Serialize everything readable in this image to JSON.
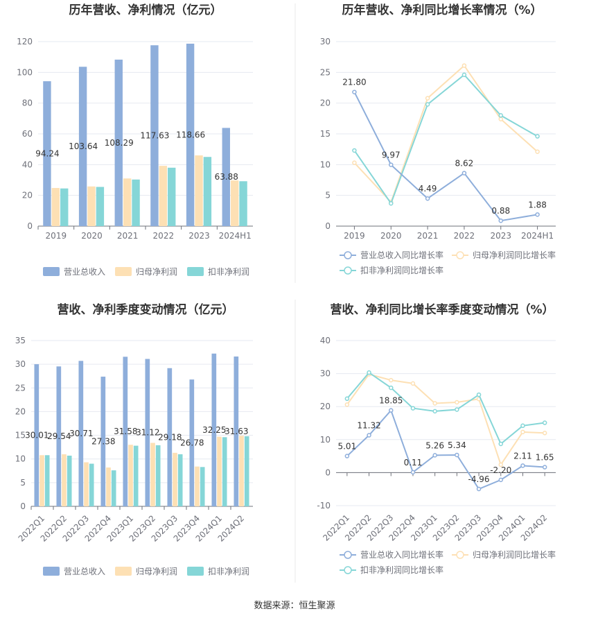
{
  "source_text": "数据来源：恒生聚源",
  "colors": {
    "revenue": "#8EAEDB",
    "parent_profit": "#FDE0B4",
    "deducted_profit": "#85D6D7",
    "grid": "#E6E9F0",
    "axis": "#6E7079",
    "title": "#333333",
    "divider": "#E8E8E8"
  },
  "chart_data": [
    {
      "type": "bar",
      "title": "历年营收、净利情况（亿元）",
      "categories": [
        "2019",
        "2020",
        "2021",
        "2022",
        "2023",
        "2024H1"
      ],
      "ylim": [
        0,
        120
      ],
      "yticks": [
        0,
        20,
        40,
        60,
        80,
        100,
        120
      ],
      "series": [
        {
          "name": "营业总收入",
          "values": [
            94.24,
            103.64,
            108.29,
            117.63,
            118.66,
            63.88
          ],
          "labels": [
            "94.24",
            "103.64",
            "108.29",
            "117.63",
            "118.66",
            "63.88"
          ]
        },
        {
          "name": "归母净利润",
          "values": [
            24.8,
            25.8,
            31.0,
            39.2,
            46.0,
            29.7
          ]
        },
        {
          "name": "扣非净利润",
          "values": [
            24.5,
            25.5,
            30.3,
            38.0,
            45.0,
            29.2
          ]
        }
      ],
      "legend": "bottom"
    },
    {
      "type": "line",
      "title": "历年营收、净利同比增长率情况（%）",
      "categories": [
        "2019",
        "2020",
        "2021",
        "2022",
        "2023",
        "2024H1"
      ],
      "ylim": [
        0,
        30
      ],
      "yticks": [
        0,
        5,
        10,
        15,
        20,
        25,
        30
      ],
      "series": [
        {
          "name": "营业总收入同比增长率",
          "values": [
            21.8,
            9.97,
            4.49,
            8.62,
            0.88,
            1.88
          ],
          "labels": [
            "21.80",
            "9.97",
            "4.49",
            "8.62",
            "0.88",
            "1.88"
          ]
        },
        {
          "name": "归母净利润同比增长率",
          "values": [
            10.3,
            3.9,
            20.8,
            26.1,
            17.4,
            12.1
          ]
        },
        {
          "name": "扣非净利润同比增长率",
          "values": [
            12.3,
            3.7,
            19.8,
            24.6,
            18.0,
            14.6
          ]
        }
      ],
      "legend": "bottom"
    },
    {
      "type": "bar",
      "title": "营收、净利季度变动情况（亿元）",
      "categories": [
        "2022Q1",
        "2022Q2",
        "2022Q3",
        "2022Q4",
        "2023Q1",
        "2023Q2",
        "2023Q3",
        "2023Q4",
        "2024Q1",
        "2024Q2"
      ],
      "ylim": [
        0,
        35
      ],
      "yticks": [
        0,
        5,
        10,
        15,
        20,
        25,
        30,
        35
      ],
      "series": [
        {
          "name": "营业总收入",
          "values": [
            30.01,
            29.54,
            30.71,
            27.38,
            31.58,
            31.12,
            29.18,
            26.78,
            32.25,
            31.63
          ],
          "labels": [
            "30.01",
            "29.54",
            "30.71",
            "27.38",
            "31.58",
            "31.12",
            "29.18",
            "26.78",
            "32.25",
            "31.63"
          ]
        },
        {
          "name": "归母净利润",
          "values": [
            10.8,
            11.0,
            9.3,
            8.2,
            13.0,
            13.4,
            11.3,
            8.4,
            14.7,
            14.9
          ]
        },
        {
          "name": "扣非净利润",
          "values": [
            10.8,
            10.7,
            9.0,
            7.6,
            12.8,
            12.9,
            11.0,
            8.3,
            14.6,
            14.8
          ]
        }
      ],
      "legend": "bottom"
    },
    {
      "type": "line",
      "title": "营收、净利同比增长率季度变动情况（%）",
      "categories": [
        "2022Q1",
        "2022Q2",
        "2022Q3",
        "2022Q4",
        "2023Q1",
        "2023Q2",
        "2023Q3",
        "2023Q4",
        "2024Q1",
        "2024Q2"
      ],
      "ylim": [
        -10,
        40
      ],
      "yticks": [
        -10,
        0,
        10,
        20,
        30,
        40
      ],
      "series": [
        {
          "name": "营业总收入同比增长率",
          "values": [
            5.01,
            11.32,
            18.85,
            0.11,
            5.26,
            5.34,
            -4.96,
            -2.2,
            2.11,
            1.65
          ],
          "labels": [
            "5.01",
            "11.32",
            "18.85",
            "0.11",
            "5.26",
            "5.34",
            "-4.96",
            "-2.20",
            "2.11",
            "1.65"
          ]
        },
        {
          "name": "归母净利润同比增长率",
          "values": [
            20.6,
            29.8,
            28.0,
            27.0,
            21.0,
            21.3,
            22.3,
            2.4,
            12.3,
            12.0
          ]
        },
        {
          "name": "扣非净利润同比增长率",
          "values": [
            22.4,
            30.3,
            25.7,
            19.5,
            18.6,
            19.1,
            23.6,
            8.7,
            14.2,
            15.1
          ]
        }
      ],
      "legend": "bottom"
    }
  ]
}
